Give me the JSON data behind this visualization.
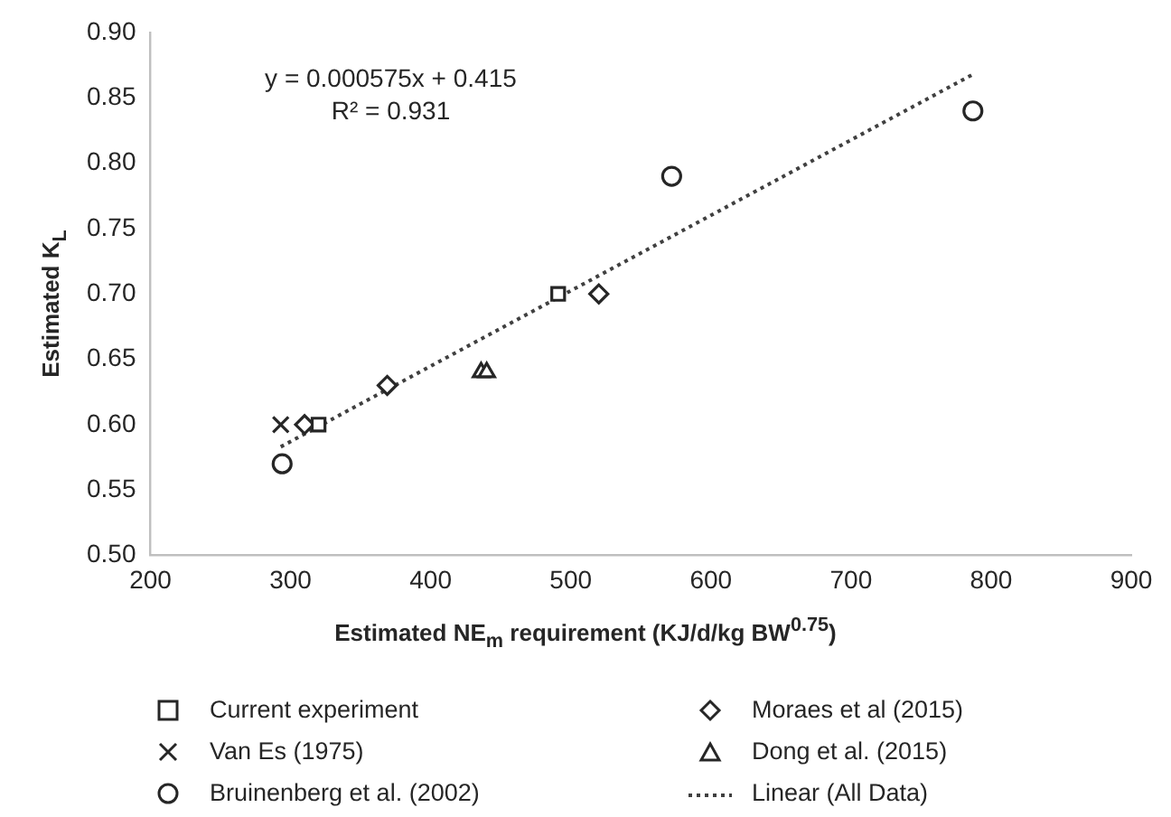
{
  "chart_data": {
    "type": "scatter",
    "xlabel": "Estimated NE$_{m}$ requirement (KJ/d/kg BW$^{0.75}$)",
    "ylabel": "Estimated K$_{L}$",
    "xlim": [
      200,
      900
    ],
    "xticks": [
      200,
      300,
      400,
      500,
      600,
      700,
      800,
      900
    ],
    "ylim": [
      0.5,
      0.9
    ],
    "yticks": [
      {
        "value": 0.5,
        "label": "0.50"
      },
      {
        "value": 0.55,
        "label": "0.55"
      },
      {
        "value": 0.6,
        "label": "0.60"
      },
      {
        "value": 0.65,
        "label": "0.65"
      },
      {
        "value": 0.7,
        "label": "0.70"
      },
      {
        "value": 0.75,
        "label": "0.75"
      },
      {
        "value": 0.8,
        "label": "0.80"
      },
      {
        "value": 0.85,
        "label": "0.85"
      },
      {
        "value": 0.9,
        "label": "0.90"
      }
    ],
    "grid": false,
    "legend": "bottom",
    "annotations": [
      "y = 0.000575x + 0.415",
      "R² = 0.931"
    ],
    "series": [
      {
        "name": "Current experiment",
        "color": "#262626",
        "marker": "square",
        "x": [
          320,
          491
        ],
        "values": [
          0.6,
          0.7
        ]
      },
      {
        "name": "Moraes et al (2015)",
        "color": "#262626",
        "marker": "diamond",
        "x": [
          310,
          369,
          520
        ],
        "values": [
          0.6,
          0.63,
          0.7
        ]
      },
      {
        "name": "Van Es (1975)",
        "color": "#262626",
        "marker": "cross",
        "x": [
          293
        ],
        "values": [
          0.6
        ]
      },
      {
        "name": "Dong et al. (2015)",
        "color": "#262626",
        "marker": "triangle",
        "x": [
          436,
          440
        ],
        "values": [
          0.64,
          0.64
        ]
      },
      {
        "name": "Bruinenberg et al. (2002)",
        "color": "#262626",
        "marker": "circle",
        "x": [
          294,
          572,
          787
        ],
        "values": [
          0.57,
          0.79,
          0.84
        ]
      },
      {
        "name": "Linear (All Data)",
        "type": "line",
        "color": "#404040",
        "marker": "none",
        "line_style": "dotted",
        "x": [
          293,
          787
        ],
        "values": [
          0.583,
          0.868
        ]
      }
    ]
  }
}
